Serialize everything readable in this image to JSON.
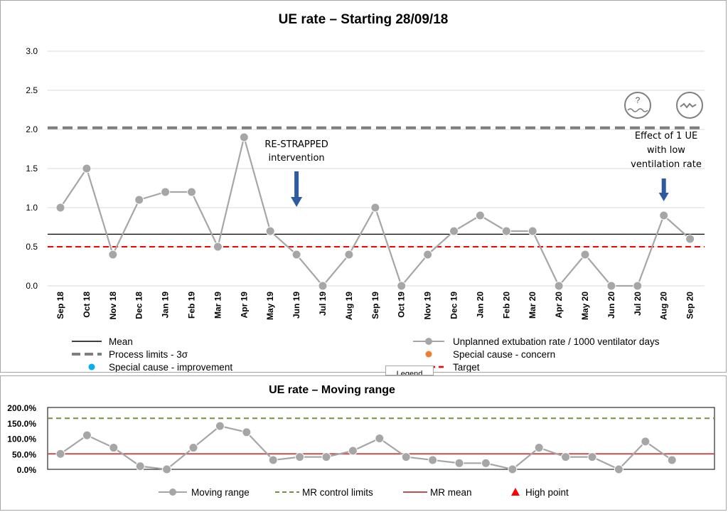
{
  "chart_data": [
    {
      "type": "line",
      "title": "UE rate – Starting 28/09/18",
      "categories": [
        "Sep 18",
        "Oct 18",
        "Nov 18",
        "Dec 18",
        "Jan 19",
        "Feb 19",
        "Mar 19",
        "Apr 19",
        "May 19",
        "Jun 19",
        "Jul 19",
        "Aug 19",
        "Sep 19",
        "Oct 19",
        "Nov 19",
        "Dec 19",
        "Jan 20",
        "Feb 20",
        "Mar 20",
        "Apr 20",
        "May 20",
        "Jun 20",
        "Jul 20",
        "Aug 20",
        "Sep 20"
      ],
      "series": [
        {
          "name": "Unplanned extubation rate / 1000 ventilator days",
          "values": [
            1.0,
            1.5,
            0.4,
            1.1,
            1.2,
            1.2,
            0.5,
            1.9,
            0.7,
            0.4,
            0.0,
            0.4,
            1.0,
            0.0,
            0.4,
            0.7,
            0.9,
            0.7,
            0.7,
            0.0,
            0.4,
            0.0,
            0.0,
            0.9,
            0.6
          ],
          "color": "#a6a6a6"
        }
      ],
      "mean": 0.66,
      "process_limit_upper": 2.02,
      "target": 0.5,
      "ylim": [
        0,
        3.0
      ],
      "yticks": [
        "3.0",
        "2.5",
        "2.0",
        "1.5",
        "1.0",
        "0.5",
        "0.0"
      ],
      "ytick_values": [
        3.0,
        2.5,
        2.0,
        1.5,
        1.0,
        0.5,
        0.0
      ],
      "annotations": [
        {
          "lines": [
            "RE-STRAPPED",
            "intervention"
          ],
          "category": "Jun 19"
        },
        {
          "lines": [
            "Effect of 1 UE",
            "with low",
            "ventilation rate"
          ],
          "category": "Aug 20"
        }
      ],
      "legend": [
        {
          "key": "mean",
          "label": "Mean"
        },
        {
          "key": "series",
          "label": "Unplanned extubation rate / 1000 ventilator days"
        },
        {
          "key": "limits",
          "label": "Process limits - 3σ"
        },
        {
          "key": "concern",
          "label": "Special cause - concern"
        },
        {
          "key": "improvement",
          "label": "Special cause  - improvement"
        },
        {
          "key": "target",
          "label": "Target"
        }
      ],
      "legend_tab": "Legend",
      "colors": {
        "mean": "#000000",
        "limits": "#7f7f7f",
        "target": "#ff0000",
        "concern": "#ed7d31",
        "improvement": "#00b0f0"
      }
    },
    {
      "type": "line",
      "title": "UE rate – Moving range",
      "values": [
        50,
        110,
        70,
        10,
        0,
        70,
        140,
        120,
        30,
        40,
        40,
        60,
        100,
        40,
        30,
        20,
        20,
        0,
        70,
        40,
        40,
        0,
        90,
        30
      ],
      "mr_mean": 50,
      "mr_control_limit": 165,
      "ylim": [
        0,
        200
      ],
      "yticks": [
        "200.0%",
        "150.0%",
        "100.0%",
        "50.0%",
        "0.0%"
      ],
      "ytick_values": [
        200,
        150,
        100,
        50,
        0
      ],
      "legend": [
        {
          "key": "mr",
          "label": "Moving range"
        },
        {
          "key": "limits",
          "label": "MR control limits"
        },
        {
          "key": "mean",
          "label": "MR mean"
        },
        {
          "key": "high",
          "label": "High point"
        }
      ],
      "colors": {
        "mr": "#a6a6a6",
        "limits": "#76923c",
        "mean": "#c0504d",
        "high": "#ff0000"
      }
    }
  ]
}
